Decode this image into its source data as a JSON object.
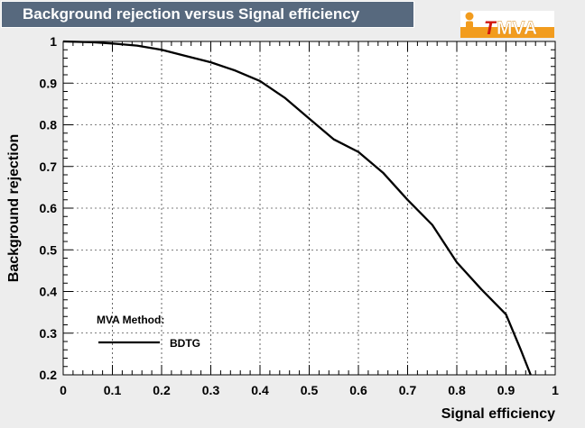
{
  "title": "Background rejection versus Signal efficiency",
  "logo": {
    "text_t": "T",
    "text_rest": "MVA",
    "t_color": "#d1170f",
    "rest_color": "#ffffff",
    "dot_color": "#f29c1e"
  },
  "colors": {
    "title_bg": "#57697e",
    "page_bg": "#ededed",
    "plot_bg": "#ffffff",
    "curve": "#000000"
  },
  "chart_data": {
    "type": "line",
    "xlabel": "Signal efficiency",
    "ylabel": "Background rejection",
    "xlim": [
      0,
      1
    ],
    "ylim": [
      0.2,
      1
    ],
    "xticks": [
      "0",
      "0.1",
      "0.2",
      "0.3",
      "0.4",
      "0.5",
      "0.6",
      "0.7",
      "0.8",
      "0.9",
      "1"
    ],
    "yticks": [
      "0.2",
      "0.3",
      "0.4",
      "0.5",
      "0.6",
      "0.7",
      "0.8",
      "0.9",
      "1"
    ],
    "grid": true,
    "legend": {
      "title": "MVA Method:",
      "position": "bottom-left"
    },
    "series": [
      {
        "name": "BDTG",
        "x": [
          0.0,
          0.06,
          0.1,
          0.15,
          0.2,
          0.25,
          0.3,
          0.35,
          0.4,
          0.45,
          0.5,
          0.55,
          0.6,
          0.65,
          0.7,
          0.75,
          0.8,
          0.85,
          0.9,
          0.93,
          0.95
        ],
        "y": [
          1.0,
          0.998,
          0.995,
          0.99,
          0.98,
          0.965,
          0.95,
          0.93,
          0.905,
          0.865,
          0.815,
          0.765,
          0.735,
          0.685,
          0.62,
          0.56,
          0.47,
          0.405,
          0.345,
          0.26,
          0.2
        ]
      }
    ]
  }
}
